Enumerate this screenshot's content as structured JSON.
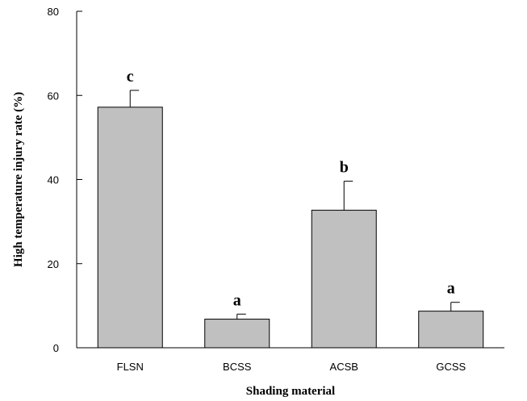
{
  "chart_data": {
    "type": "bar",
    "title": "",
    "xlabel": "Shading material",
    "ylabel": "High temperature injury  rate (%)",
    "categories": [
      "FLSN",
      "BCSS",
      "ACSB",
      "GCSS"
    ],
    "values": [
      57.2,
      6.8,
      32.7,
      8.7
    ],
    "error_upper": [
      61.2,
      8.0,
      39.6,
      10.8
    ],
    "significance_letters": [
      "c",
      "a",
      "b",
      "a"
    ],
    "ylim": [
      0,
      80
    ],
    "yticks": [
      0,
      20,
      40,
      60,
      80
    ],
    "grid": false,
    "bar_color": "#c0c0c0",
    "edge_color": "#000000"
  }
}
